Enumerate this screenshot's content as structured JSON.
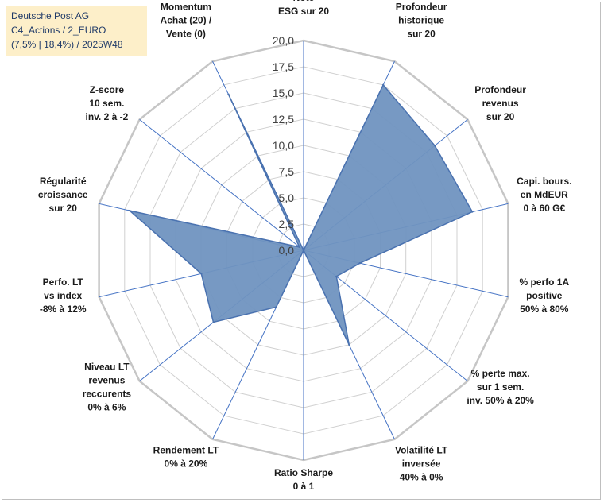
{
  "title_box": {
    "line1": "Deutsche Post AG",
    "line2": "C4_Actions / 2_EURO",
    "line3": "(7,5% | 18,4%) / 2025W48"
  },
  "colors": {
    "fill": "#7094c0",
    "stroke": "#4a72b0",
    "spoke": "#4472c4",
    "ring": "#d0d0d0",
    "outer_ring": "#c6c6c6",
    "title_bg": "#fdefc9",
    "title_text": "#1f3a68"
  },
  "chart_data": {
    "type": "radar",
    "title": "",
    "rmin": 0,
    "rmax": 20,
    "ticks": [
      "0,0",
      "2,5",
      "5,0",
      "7,5",
      "10,0",
      "12,5",
      "15,0",
      "17,5",
      "20,0"
    ],
    "tick_values": [
      0,
      2.5,
      5,
      7.5,
      10,
      12.5,
      15,
      17.5,
      20
    ],
    "categories": [
      [
        "Note",
        "ESG sur 20"
      ],
      [
        "Profondeur",
        "historique",
        "sur 20"
      ],
      [
        "Profondeur",
        "revenus",
        "sur 20"
      ],
      [
        "Capi. bours.",
        "en MdEUR",
        "0 à 60 G€"
      ],
      [
        "% perfo 1A",
        "positive",
        "50% à 80%"
      ],
      [
        "% perte max.",
        "sur 1 sem.",
        "inv. 50% à 20%"
      ],
      [
        "Volatilité LT",
        "inversée",
        "40% à 0%"
      ],
      [
        "Ratio Sharpe",
        "0 à 1"
      ],
      [
        "Rendement LT",
        "0% à 20%"
      ],
      [
        "Niveau LT",
        "revenus",
        "reccurents",
        "0% à 6%"
      ],
      [
        "Perfo. LT",
        "vs index",
        "-8% à 12%"
      ],
      [
        "Régularité",
        "croissance",
        "sur 20"
      ],
      [
        "Z-score",
        "10 sem.",
        "inv. 2 à -2"
      ],
      [
        "Momentum",
        "Achat (20) /",
        "Vente (0)"
      ]
    ],
    "series": [
      {
        "name": "Deutsche Post AG",
        "values": [
          0,
          17.5,
          16,
          16.5,
          5.5,
          4,
          10,
          0,
          6,
          11,
          10,
          17,
          0.5,
          16.5
        ]
      }
    ]
  }
}
